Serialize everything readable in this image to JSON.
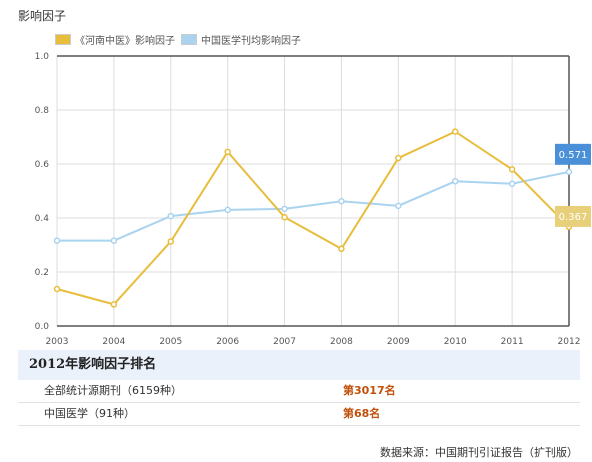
{
  "chart_data": {
    "type": "line",
    "title": "影响因子",
    "categories": [
      "2003",
      "2004",
      "2005",
      "2006",
      "2007",
      "2008",
      "2009",
      "2010",
      "2011",
      "2012"
    ],
    "ylim": [
      0,
      1.0
    ],
    "yticks": [
      "0.0",
      "0.2",
      "0.4",
      "0.6",
      "0.8",
      "1.0"
    ],
    "grid": true,
    "legend_position": "top-left",
    "series": [
      {
        "name": "《河南中医》影响因子",
        "color": "#e8bd3c",
        "values": [
          0.137,
          0.08,
          0.313,
          0.645,
          0.403,
          0.286,
          0.622,
          0.72,
          0.58,
          0.367
        ],
        "end_label": "0.367",
        "end_label_color": "#e8cf7a"
      },
      {
        "name": "中国医学刊均影响因子",
        "color": "#a9d3ef",
        "values": [
          0.316,
          0.316,
          0.407,
          0.43,
          0.434,
          0.462,
          0.445,
          0.536,
          0.527,
          0.571
        ],
        "end_label": "0.571",
        "end_label_color": "#4a90d9"
      }
    ]
  },
  "ranking": {
    "title": "2012年影响因子排名",
    "rows": [
      {
        "label": "全部统计源期刊（6159种）",
        "value": "第3017名"
      },
      {
        "label": "中国医学（91种）",
        "value": "第68名"
      }
    ]
  },
  "source": "数据来源：中国期刊引证报告（扩刊版）"
}
